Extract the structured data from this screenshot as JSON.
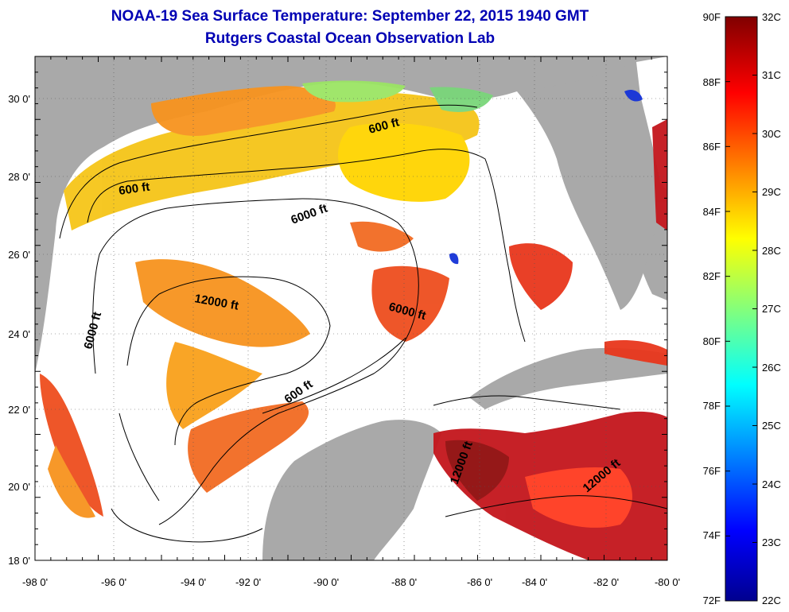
{
  "title": {
    "line1": "NOAA-19 Sea Surface Temperature:  September 22, 2015 1940 GMT",
    "line2": "Rutgers Coastal Ocean Observation Lab"
  },
  "axes": {
    "lon_labels": [
      "-98 0'",
      "-96 0'",
      "-94 0'",
      "-92 0'",
      "-90 0'",
      "-88 0'",
      "-86 0'",
      "-84 0'",
      "-82 0'",
      "-80 0'"
    ],
    "lat_labels": [
      "30 0'",
      "28 0'",
      "26 0'",
      "24 0'",
      "22 0'",
      "20 0'",
      "18 0'"
    ]
  },
  "contours": [
    {
      "label": "600 ft"
    },
    {
      "label": "600 ft"
    },
    {
      "label": "6000 ft"
    },
    {
      "label": "12000 ft"
    },
    {
      "label": "6000 ft"
    },
    {
      "label": "6000 ft"
    },
    {
      "label": "600 ft"
    },
    {
      "label": "12000 ft"
    },
    {
      "label": "12000 ft"
    }
  ],
  "colorbar": {
    "fahrenheit": [
      "90F",
      "88F",
      "86F",
      "84F",
      "82F",
      "80F",
      "78F",
      "76F",
      "74F",
      "72F"
    ],
    "celsius": [
      "32C",
      "31C",
      "30C",
      "29C",
      "28C",
      "27C",
      "26C",
      "25C",
      "24C",
      "23C",
      "22C"
    ]
  },
  "colors": {
    "land": "#a9a9a9",
    "cloud": "#ffffff",
    "title": "#0000b4"
  }
}
